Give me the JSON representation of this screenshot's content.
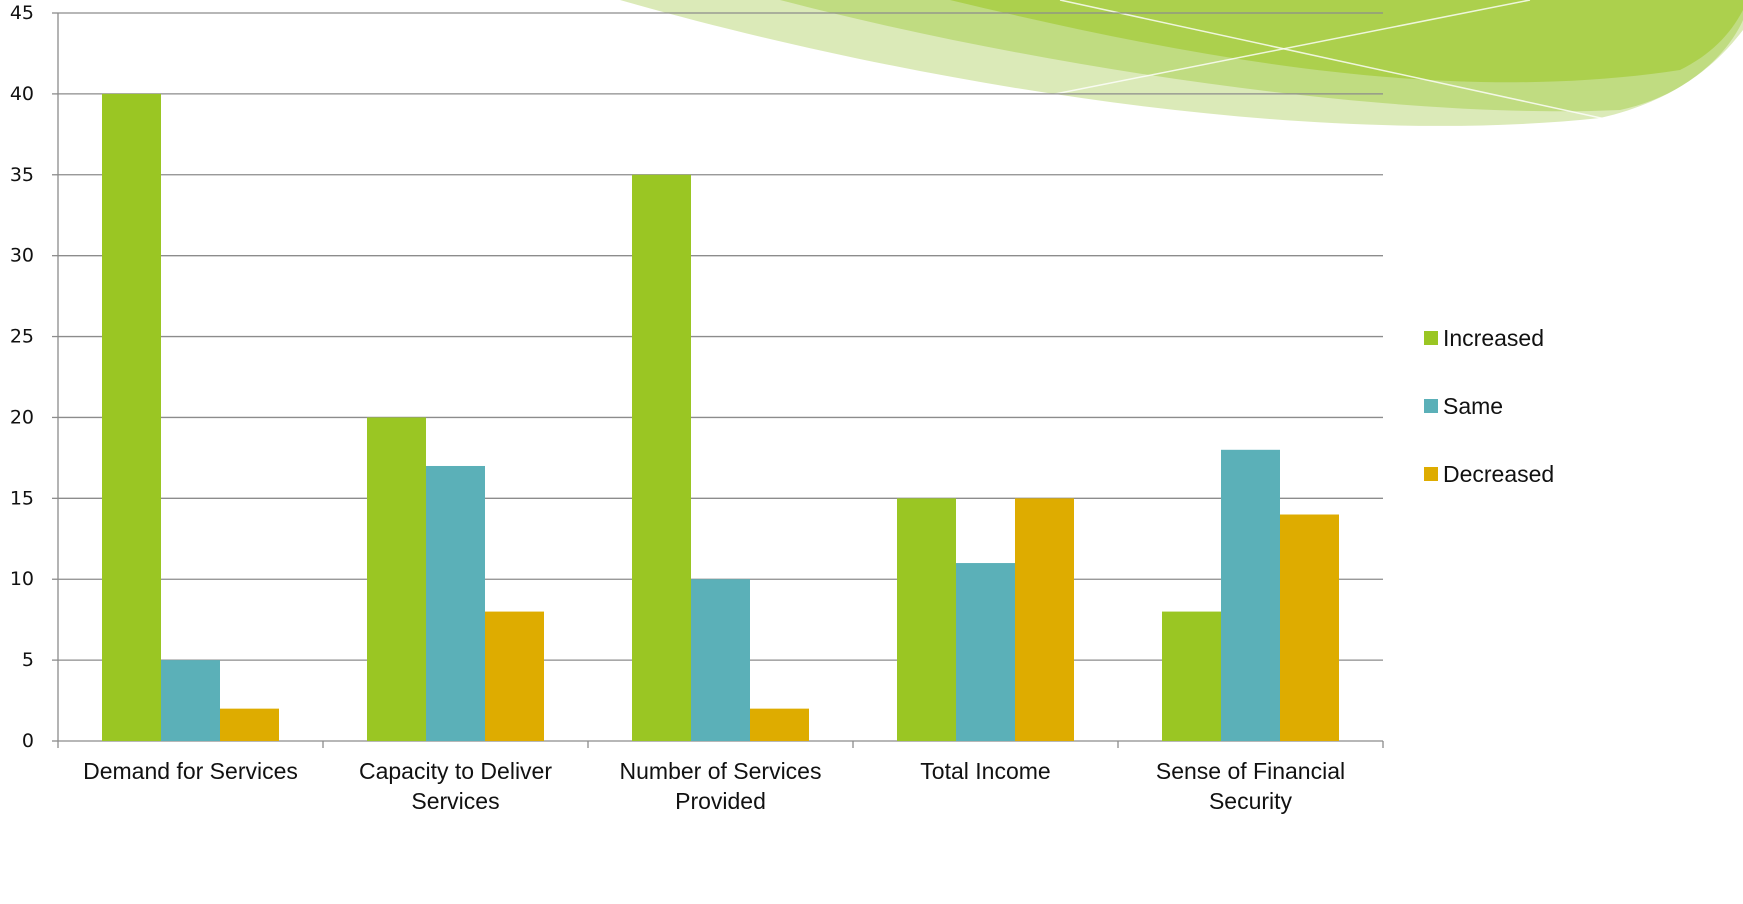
{
  "chart_data": {
    "type": "bar",
    "title": "",
    "xlabel": "",
    "ylabel": "",
    "ylim": [
      0,
      45
    ],
    "ytick_step": 5,
    "grid": true,
    "legend_position": "right",
    "categories": [
      [
        "Demand for Services"
      ],
      [
        "Capacity to Deliver",
        "Services"
      ],
      [
        "Number of Services",
        "Provided"
      ],
      [
        "Total Income"
      ],
      [
        "Sense of Financial",
        "Security"
      ]
    ],
    "series": [
      {
        "name": "Increased",
        "color": "#9ac623",
        "values": [
          40,
          20,
          35,
          15,
          8
        ]
      },
      {
        "name": "Same",
        "color": "#5bb0b8",
        "values": [
          5,
          17,
          10,
          11,
          18
        ]
      },
      {
        "name": "Decreased",
        "color": "#deac00",
        "values": [
          2,
          8,
          2,
          15,
          14
        ]
      }
    ]
  }
}
